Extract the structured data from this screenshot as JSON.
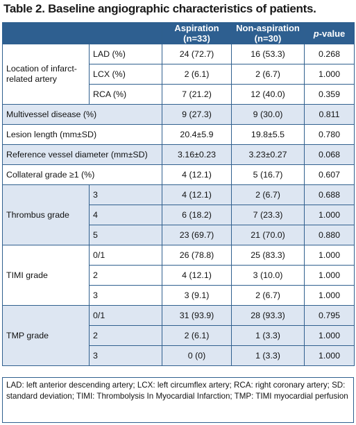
{
  "title": "Table 2. Baseline angiographic characteristics of patients.",
  "headers": {
    "aspiration": "Aspiration",
    "aspiration_n": "(n=33)",
    "non_aspiration": "Non-aspiration",
    "non_aspiration_n": "(n=30)",
    "p_italic": "p",
    "p_rest": "-value"
  },
  "groups": [
    {
      "label": "Location of infarct-related artery",
      "shade": false,
      "rows": [
        {
          "sub": "LAD (%)",
          "asp": "24 (72.7)",
          "non": "16 (53.3)",
          "p": "0.268"
        },
        {
          "sub": "LCX (%)",
          "asp": "2 (6.1)",
          "non": "2 (6.7)",
          "p": "1.000"
        },
        {
          "sub": "RCA (%)",
          "asp": "7 (21.2)",
          "non": "12 (40.0)",
          "p": "0.359"
        }
      ]
    },
    {
      "label": "Multivessel disease (%)",
      "shade": true,
      "rows": [
        {
          "sub": "",
          "asp": "9 (27.3)",
          "non": "9 (30.0)",
          "p": "0.811"
        }
      ]
    },
    {
      "label": "Lesion length (mm±SD)",
      "shade": false,
      "rows": [
        {
          "sub": "",
          "asp": "20.4±5.9",
          "non": "19.8±5.5",
          "p": "0.780"
        }
      ]
    },
    {
      "label": "Reference vessel diameter (mm±SD)",
      "shade": true,
      "rows": [
        {
          "sub": "",
          "asp": "3.16±0.23",
          "non": "3.23±0.27",
          "p": "0.068"
        }
      ]
    },
    {
      "label": "Collateral grade ≥1 (%)",
      "shade": false,
      "rows": [
        {
          "sub": "",
          "asp": "4 (12.1)",
          "non": "5 (16.7)",
          "p": "0.607"
        }
      ]
    },
    {
      "label": "Thrombus grade",
      "shade": true,
      "rows": [
        {
          "sub": "3",
          "asp": "4 (12.1)",
          "non": "2 (6.7)",
          "p": "0.688"
        },
        {
          "sub": "4",
          "asp": "6 (18.2)",
          "non": "7 (23.3)",
          "p": "1.000"
        },
        {
          "sub": "5",
          "asp": "23 (69.7)",
          "non": "21 (70.0)",
          "p": "0.880"
        }
      ]
    },
    {
      "label": "TIMI grade",
      "shade": false,
      "rows": [
        {
          "sub": "0/1",
          "asp": "26 (78.8)",
          "non": "25 (83.3)",
          "p": "1.000"
        },
        {
          "sub": "2",
          "asp": "4 (12.1)",
          "non": "3 (10.0)",
          "p": "1.000"
        },
        {
          "sub": "3",
          "asp": "3 (9.1)",
          "non": "2 (6.7)",
          "p": "1.000"
        }
      ]
    },
    {
      "label": "TMP grade",
      "shade": true,
      "rows": [
        {
          "sub": "0/1",
          "asp": "31 (93.9)",
          "non": "28 (93.3)",
          "p": "0.795"
        },
        {
          "sub": "2",
          "asp": "2 (6.1)",
          "non": "1 (3.3)",
          "p": "1.000"
        },
        {
          "sub": "3",
          "asp": "0 (0)",
          "non": "1 (3.3)",
          "p": "1.000"
        }
      ]
    }
  ],
  "footnote": "LAD: left anterior descending artery; LCX: left circumflex artery; RCA: right coronary artery; SD: standard deviation; TIMI: Thrombolysis In Myocardial Infarction; TMP: TIMI myocardial perfusion",
  "colors": {
    "header_bg": "#2e5f90",
    "shade_bg": "#dde6f2",
    "border": "#2f5f8e"
  }
}
